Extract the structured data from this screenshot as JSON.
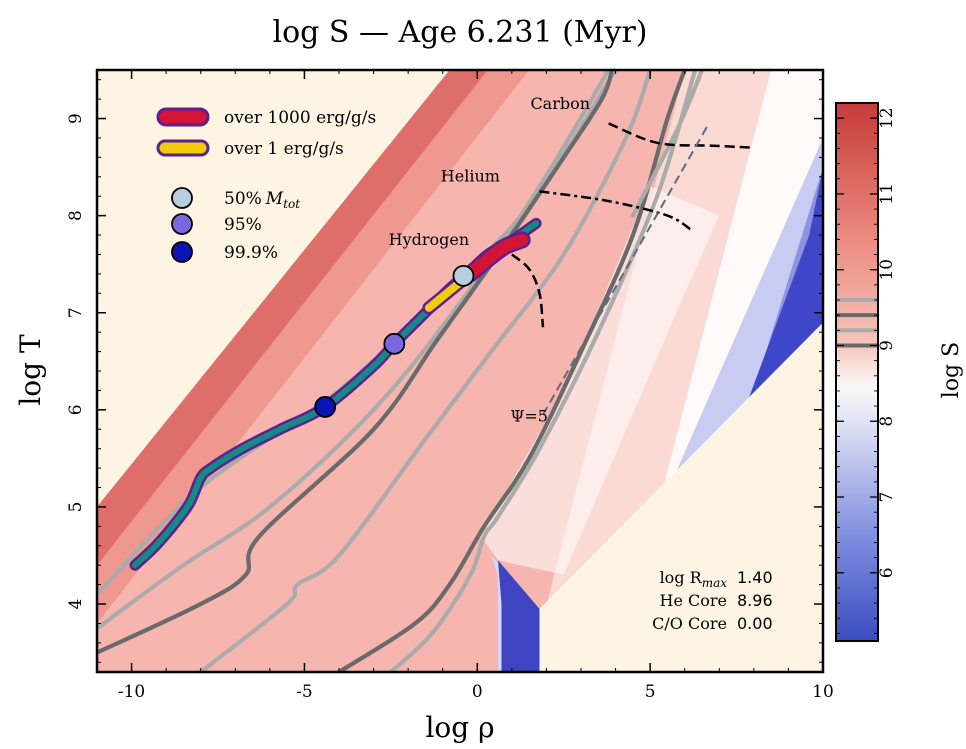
{
  "title": "log S — Age 6.231 (Myr)",
  "colors": {
    "background": "#fdf4e4",
    "track_fill": "#148a84",
    "track_edge": "#5e1f8f",
    "burn_1000": "#d41434",
    "burn_1": "#f2cc0c",
    "marker_50": "#b9cde0",
    "marker_95": "#7b68e0",
    "marker_999": "#0a14b4",
    "iso_dark": "#6a6a6a",
    "iso_light": "#ababab"
  },
  "chart_data": {
    "type": "heatmap",
    "title": "log S — Age 6.231 (Myr)",
    "xlabel": "log ρ",
    "ylabel": "log T",
    "xlim": [
      -11,
      10
    ],
    "ylim": [
      3.3,
      9.5
    ],
    "x_ticks": [
      "-10",
      "-5",
      "0",
      "5",
      "10"
    ],
    "y_ticks": [
      "4",
      "5",
      "6",
      "7",
      "8",
      "9"
    ],
    "colorbar": {
      "label": "log S",
      "range": [
        5.1,
        12.2
      ],
      "ticks": [
        "6",
        "7",
        "8",
        "9",
        "10",
        "11",
        "12"
      ],
      "isolines": [
        9.0,
        9.2,
        9.4,
        9.6
      ],
      "colormap": "coolwarm"
    },
    "burning_lines": [
      {
        "name": "Hydrogen",
        "points": [
          [
            1.0,
            7.6
          ],
          [
            1.5,
            7.45
          ],
          [
            1.8,
            7.2
          ],
          [
            1.9,
            6.85
          ]
        ]
      },
      {
        "name": "Helium",
        "points": [
          [
            1.8,
            8.25
          ],
          [
            3.8,
            8.15
          ],
          [
            5.5,
            8.0
          ],
          [
            6.2,
            7.85
          ]
        ]
      },
      {
        "name": "Carbon",
        "points": [
          [
            3.8,
            8.95
          ],
          [
            5.2,
            8.75
          ],
          [
            6.8,
            8.72
          ],
          [
            8.0,
            8.7
          ]
        ]
      }
    ],
    "degeneracy_line": {
      "label": "Ψ=5",
      "points": [
        [
          1.9,
          5.95
        ],
        [
          6.7,
          8.95
        ]
      ]
    },
    "profile": {
      "x": [
        -9.9,
        -9.3,
        -8.7,
        -8.3,
        -8.0,
        -7.7,
        -6.8,
        -5.7,
        -4.4,
        -3.0,
        -2.4,
        -1.5,
        -0.8,
        -0.3,
        0.3,
        0.9,
        1.7
      ],
      "y": [
        4.4,
        4.6,
        4.85,
        5.05,
        5.3,
        5.4,
        5.6,
        5.8,
        6.03,
        6.45,
        6.68,
        7.0,
        7.25,
        7.4,
        7.6,
        7.72,
        7.92
      ]
    },
    "burn_1000": {
      "label": "over 1000 erg/g/s",
      "x": [
        -0.2,
        0.3,
        0.8,
        1.3
      ],
      "y": [
        7.4,
        7.55,
        7.68,
        7.75
      ]
    },
    "burn_1": {
      "label": "over 1 erg/g/s",
      "x": [
        -1.4,
        -0.2
      ],
      "y": [
        7.05,
        7.4
      ]
    },
    "mass_markers": [
      {
        "label": "50% M_tot",
        "x": -0.4,
        "y": 7.38
      },
      {
        "label": "95%",
        "x": -2.4,
        "y": 6.68
      },
      {
        "label": "99.9%",
        "x": -4.4,
        "y": 6.03
      }
    ],
    "info": [
      {
        "label": "log R_max",
        "value": "1.40"
      },
      {
        "label": "He Core",
        "value": "8.96"
      },
      {
        "label": "C/O Core",
        "value": "0.00"
      }
    ]
  }
}
